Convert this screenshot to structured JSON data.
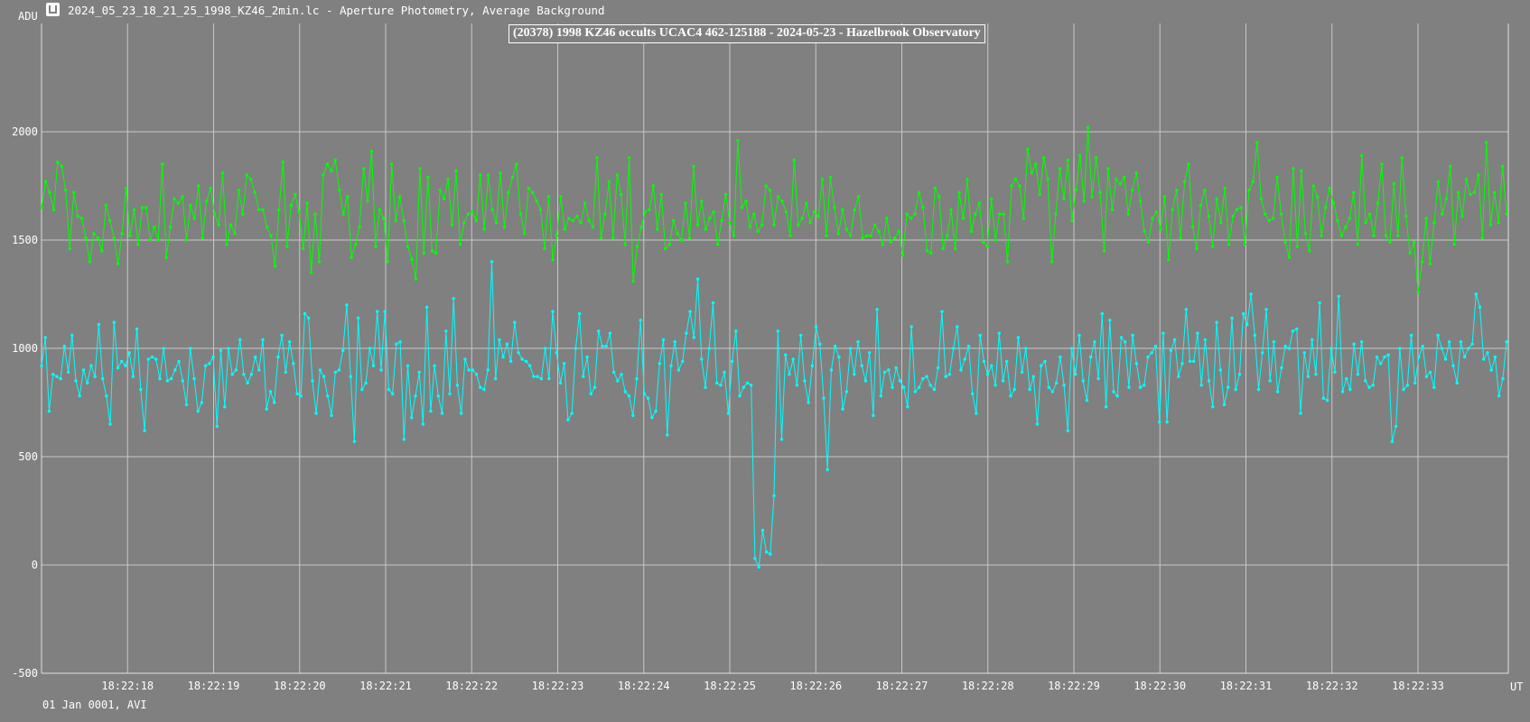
{
  "window": {
    "title": "2024_05_23_18_21_25_1998_KZ46_2min.lc - Aperture Photometry, Average Background",
    "icon": "light-curve-app-icon"
  },
  "footer": {
    "text": "01 Jan 0001, AVI"
  },
  "chart_data": {
    "type": "line",
    "title": "(20378) 1998 KZ46 occults UCAC4 462-125188 - 2024-05-23 - Hazelbrook Observatory",
    "ylabel": "ADU",
    "xlabel": "UT",
    "ylim": [
      -500,
      2500
    ],
    "yticks": [
      -500,
      0,
      500,
      1000,
      1500,
      2000
    ],
    "x_range_seconds": [
      17.0,
      34.05
    ],
    "xticks": [
      {
        "label": "18:22:18",
        "t": 18
      },
      {
        "label": "18:22:19",
        "t": 19
      },
      {
        "label": "18:22:20",
        "t": 20
      },
      {
        "label": "18:22:21",
        "t": 21
      },
      {
        "label": "18:22:22",
        "t": 22
      },
      {
        "label": "18:22:23",
        "t": 23
      },
      {
        "label": "18:22:24",
        "t": 24
      },
      {
        "label": "18:22:25",
        "t": 25
      },
      {
        "label": "18:22:26",
        "t": 26
      },
      {
        "label": "18:22:27",
        "t": 27
      },
      {
        "label": "18:22:28",
        "t": 28
      },
      {
        "label": "18:22:29",
        "t": 29
      },
      {
        "label": "18:22:30",
        "t": 30
      },
      {
        "label": "18:22:31",
        "t": 31
      },
      {
        "label": "18:22:32",
        "t": 32
      },
      {
        "label": "18:22:33",
        "t": 33
      }
    ],
    "grid": true,
    "series": [
      {
        "name": "",
        "color": "#00ff00",
        "values": [
          1650,
          1770,
          1720,
          1640,
          1860,
          1840,
          1730,
          1460,
          1720,
          1610,
          1600,
          1510,
          1400,
          1530,
          1510,
          1450,
          1660,
          1590,
          1510,
          1390,
          1530,
          1740,
          1520,
          1640,
          1480,
          1650,
          1650,
          1500,
          1560,
          1500,
          1850,
          1420,
          1560,
          1690,
          1670,
          1700,
          1500,
          1660,
          1600,
          1750,
          1510,
          1680,
          1740,
          1620,
          1570,
          1810,
          1480,
          1570,
          1530,
          1730,
          1620,
          1800,
          1780,
          1720,
          1640,
          1640,
          1560,
          1520,
          1380,
          1640,
          1860,
          1470,
          1660,
          1710,
          1630,
          1460,
          1670,
          1350,
          1620,
          1400,
          1800,
          1850,
          1820,
          1870,
          1730,
          1620,
          1700,
          1420,
          1480,
          1560,
          1830,
          1680,
          1910,
          1470,
          1640,
          1600,
          1400,
          1850,
          1590,
          1700,
          1590,
          1470,
          1410,
          1320,
          1830,
          1440,
          1790,
          1450,
          1440,
          1730,
          1690,
          1780,
          1570,
          1820,
          1480,
          1580,
          1620,
          1630,
          1590,
          1800,
          1550,
          1800,
          1640,
          1580,
          1810,
          1560,
          1720,
          1790,
          1850,
          1620,
          1530,
          1740,
          1720,
          1680,
          1640,
          1460,
          1700,
          1410,
          1520,
          1700,
          1550,
          1600,
          1590,
          1610,
          1580,
          1670,
          1590,
          1560,
          1880,
          1510,
          1620,
          1770,
          1510,
          1800,
          1710,
          1480,
          1880,
          1310,
          1470,
          1560,
          1630,
          1640,
          1750,
          1550,
          1710,
          1460,
          1480,
          1590,
          1530,
          1500,
          1670,
          1510,
          1840,
          1570,
          1680,
          1550,
          1600,
          1630,
          1480,
          1590,
          1710,
          1580,
          1520,
          1960,
          1650,
          1680,
          1560,
          1620,
          1540,
          1570,
          1750,
          1730,
          1570,
          1700,
          1680,
          1630,
          1520,
          1870,
          1570,
          1600,
          1670,
          1580,
          1630,
          1610,
          1780,
          1520,
          1790,
          1650,
          1530,
          1640,
          1550,
          1520,
          1640,
          1700,
          1510,
          1520,
          1520,
          1570,
          1540,
          1480,
          1600,
          1490,
          1510,
          1540,
          1430,
          1620,
          1600,
          1620,
          1720,
          1650,
          1450,
          1440,
          1740,
          1700,
          1460,
          1520,
          1640,
          1460,
          1720,
          1600,
          1780,
          1540,
          1620,
          1670,
          1490,
          1470,
          1690,
          1500,
          1620,
          1620,
          1400,
          1750,
          1780,
          1750,
          1600,
          1920,
          1810,
          1850,
          1710,
          1880,
          1780,
          1400,
          1620,
          1830,
          1690,
          1870,
          1590,
          1730,
          1890,
          1680,
          2020,
          1700,
          1880,
          1720,
          1450,
          1830,
          1640,
          1780,
          1760,
          1790,
          1620,
          1730,
          1810,
          1680,
          1540,
          1490,
          1600,
          1630,
          1550,
          1700,
          1410,
          1640,
          1730,
          1510,
          1770,
          1850,
          1560,
          1460,
          1660,
          1730,
          1610,
          1470,
          1690,
          1580,
          1740,
          1480,
          1610,
          1640,
          1650,
          1480,
          1730,
          1770,
          1950,
          1690,
          1620,
          1590,
          1600,
          1790,
          1620,
          1490,
          1420,
          1830,
          1470,
          1820,
          1530,
          1450,
          1750,
          1700,
          1520,
          1650,
          1740,
          1670,
          1590,
          1520,
          1560,
          1600,
          1720,
          1480,
          1890,
          1580,
          1620,
          1520,
          1670,
          1850,
          1520,
          1490,
          1760,
          1520,
          1880,
          1610,
          1440,
          1490,
          1260,
          1400,
          1600,
          1390,
          1580,
          1770,
          1620,
          1690,
          1840,
          1480,
          1720,
          1610,
          1780,
          1710,
          1720,
          1800,
          1510,
          1950,
          1570,
          1720,
          1580,
          1840,
          1620
        ]
      },
      {
        "name": "",
        "color": "#00ffff",
        "values": [
          920,
          1050,
          710,
          880,
          870,
          860,
          1010,
          890,
          1060,
          850,
          780,
          900,
          840,
          920,
          870,
          1110,
          860,
          780,
          650,
          1120,
          910,
          940,
          920,
          980,
          870,
          1090,
          810,
          620,
          950,
          960,
          950,
          860,
          1000,
          850,
          860,
          900,
          940,
          850,
          740,
          1000,
          860,
          710,
          750,
          920,
          930,
          960,
          640,
          990,
          730,
          1000,
          880,
          900,
          1040,
          880,
          840,
          880,
          960,
          900,
          1040,
          720,
          800,
          750,
          960,
          1060,
          890,
          1030,
          930,
          790,
          780,
          1160,
          1140,
          850,
          700,
          900,
          870,
          780,
          690,
          890,
          900,
          990,
          1200,
          870,
          570,
          1140,
          810,
          840,
          1000,
          920,
          1170,
          900,
          1170,
          810,
          790,
          1020,
          1030,
          580,
          920,
          680,
          780,
          890,
          650,
          1190,
          710,
          920,
          780,
          700,
          1080,
          790,
          1230,
          830,
          700,
          950,
          900,
          900,
          880,
          820,
          810,
          900,
          1400,
          860,
          1040,
          960,
          1020,
          940,
          1120,
          980,
          950,
          940,
          920,
          870,
          870,
          860,
          1000,
          860,
          1170,
          980,
          840,
          930,
          670,
          700,
          1000,
          1160,
          870,
          960,
          790,
          820,
          1080,
          1010,
          1010,
          1070,
          890,
          850,
          880,
          800,
          780,
          690,
          860,
          1130,
          790,
          770,
          680,
          710,
          930,
          1040,
          600,
          920,
          1030,
          900,
          940,
          1070,
          1170,
          1050,
          1320,
          950,
          820,
          1000,
          1210,
          840,
          830,
          890,
          700,
          940,
          1080,
          780,
          820,
          840,
          830,
          30,
          -10,
          160,
          60,
          50,
          320,
          1080,
          580,
          970,
          880,
          950,
          830,
          1060,
          850,
          750,
          920,
          1100,
          1020,
          770,
          440,
          900,
          1010,
          960,
          720,
          800,
          1000,
          880,
          1030,
          920,
          850,
          980,
          690,
          1180,
          780,
          890,
          900,
          820,
          910,
          850,
          820,
          730,
          1100,
          800,
          820,
          860,
          870,
          830,
          810,
          910,
          1170,
          870,
          880,
          1000,
          1100,
          900,
          950,
          1010,
          790,
          700,
          1060,
          940,
          880,
          920,
          830,
          1070,
          850,
          940,
          780,
          810,
          1050,
          890,
          1000,
          810,
          870,
          650,
          920,
          940,
          820,
          800,
          840,
          960,
          830,
          620,
          1000,
          880,
          1060,
          850,
          760,
          960,
          1030,
          860,
          1160,
          730,
          1130,
          800,
          780,
          1050,
          1030,
          820,
          1060,
          930,
          820,
          830,
          960,
          980,
          1010,
          660,
          1070,
          660,
          990,
          1040,
          870,
          930,
          1180,
          940,
          940,
          1070,
          830,
          1040,
          850,
          730,
          1120,
          900,
          740,
          820,
          1140,
          810,
          880,
          1160,
          1110,
          1250,
          1060,
          810,
          980,
          1180,
          850,
          1030,
          800,
          910,
          1010,
          1000,
          1080,
          1090,
          700,
          980,
          870,
          1040,
          880,
          1210,
          770,
          760,
          1000,
          890,
          1240,
          800,
          860,
          810,
          1020,
          880,
          1030,
          850,
          820,
          830,
          960,
          930,
          960,
          970,
          570,
          640,
          1000,
          810,
          830,
          1060,
          840,
          960,
          1010,
          870,
          890,
          820,
          1060,
          1000,
          950,
          1030,
          920,
          840,
          1030,
          960,
          1000,
          1020,
          1250,
          1190,
          950,
          980,
          900,
          960,
          780,
          860,
          1030
        ]
      }
    ]
  }
}
